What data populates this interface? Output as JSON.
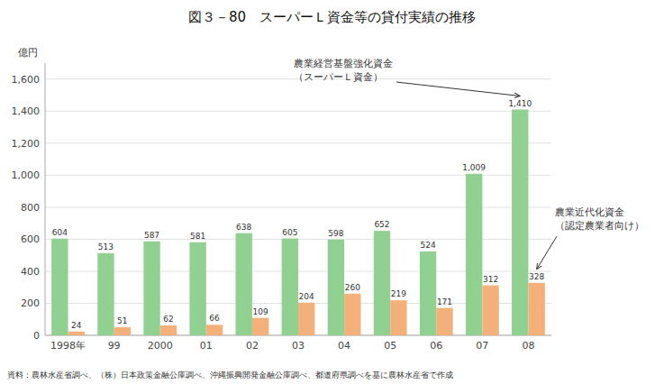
{
  "chart_data": {
    "type": "bar",
    "title": "図３－80　スーパーＬ資金等の貸付実績の推移",
    "ylabel": "億円",
    "footer": "資料：農林水産省調べ、（株）日本政策金融公庫調べ、沖縄振興開発金融公庫調べ、都道府県調べを基に農林水産省で作成",
    "categories": [
      "1998年",
      "99",
      "2000",
      "01",
      "02",
      "03",
      "04",
      "05",
      "06",
      "07",
      "08"
    ],
    "series": [
      {
        "color": "#90d090",
        "values": [
          604,
          513,
          587,
          581,
          638,
          605,
          598,
          652,
          524,
          1009,
          1410
        ],
        "value_labels": [
          "604",
          "513",
          "587",
          "581",
          "638",
          "605",
          "598",
          "652",
          "524",
          "1,009",
          "1,410"
        ],
        "annotation": [
          "農業経営基盤強化資金",
          "（スーパーＬ資金）"
        ]
      },
      {
        "color": "#f4b07a",
        "values": [
          24,
          51,
          62,
          66,
          109,
          204,
          260,
          219,
          171,
          312,
          328
        ],
        "annotation": [
          "農業近代化資金",
          "（認定農業者向け）"
        ]
      }
    ],
    "ylim": [
      0,
      1700
    ],
    "yticks": [
      0,
      200,
      400,
      600,
      800,
      {
        "value": 1000,
        "label": "1,000"
      },
      {
        "value": 1200,
        "label": "1,200"
      },
      {
        "value": 1400,
        "label": "1,400"
      },
      {
        "value": 1600,
        "label": "1,600"
      }
    ],
    "grid": true,
    "data_labels": true
  }
}
